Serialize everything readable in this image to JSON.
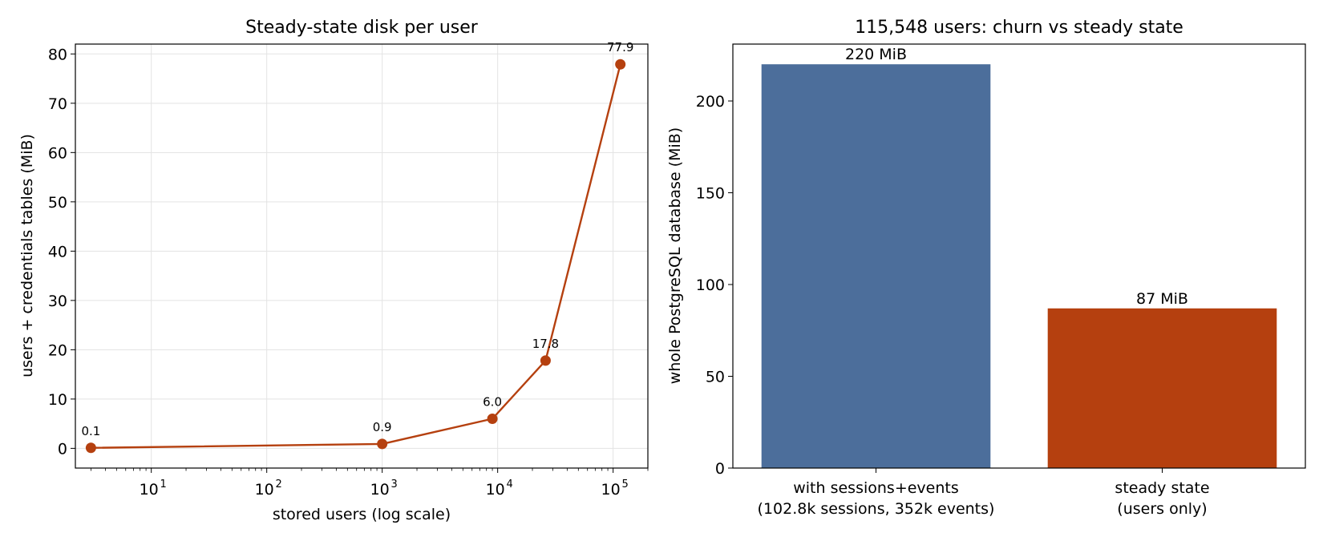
{
  "chart_data": [
    {
      "type": "line",
      "title": "Steady-state disk per user",
      "xlabel": "stored users (log scale)",
      "ylabel": "users + credentials tables (MiB)",
      "xscale": "log",
      "xlim": [
        2.2,
        200000
      ],
      "ylim": [
        -4,
        82
      ],
      "grid": true,
      "color": "#b5400f",
      "x": [
        3,
        1000,
        9000,
        26000,
        115548
      ],
      "y": [
        0.1,
        0.9,
        6.0,
        17.8,
        77.9
      ],
      "point_labels": [
        "0.1",
        "0.9",
        "6.0",
        "17.8",
        "77.9"
      ],
      "x_ticks": [
        {
          "value": 10,
          "base": "10",
          "exp": "1"
        },
        {
          "value": 100,
          "base": "10",
          "exp": "2"
        },
        {
          "value": 1000,
          "base": "10",
          "exp": "3"
        },
        {
          "value": 10000,
          "base": "10",
          "exp": "4"
        },
        {
          "value": 100000,
          "base": "10",
          "exp": "5"
        }
      ],
      "y_ticks": [
        0,
        10,
        20,
        30,
        40,
        50,
        60,
        70,
        80
      ]
    },
    {
      "type": "bar",
      "title": "115,548 users: churn vs steady state",
      "xlabel": "",
      "ylabel": "whole PostgreSQL database (MiB)",
      "ylim": [
        0,
        231
      ],
      "categories": [
        [
          "with sessions+events",
          "(102.8k sessions, 352k events)"
        ],
        [
          "steady state",
          "(users only)"
        ]
      ],
      "values": [
        220,
        87
      ],
      "value_labels": [
        "220 MiB",
        "87 MiB"
      ],
      "colors": [
        "#4c6e9b",
        "#b5400f"
      ],
      "y_ticks": [
        0,
        50,
        100,
        150,
        200
      ]
    }
  ]
}
